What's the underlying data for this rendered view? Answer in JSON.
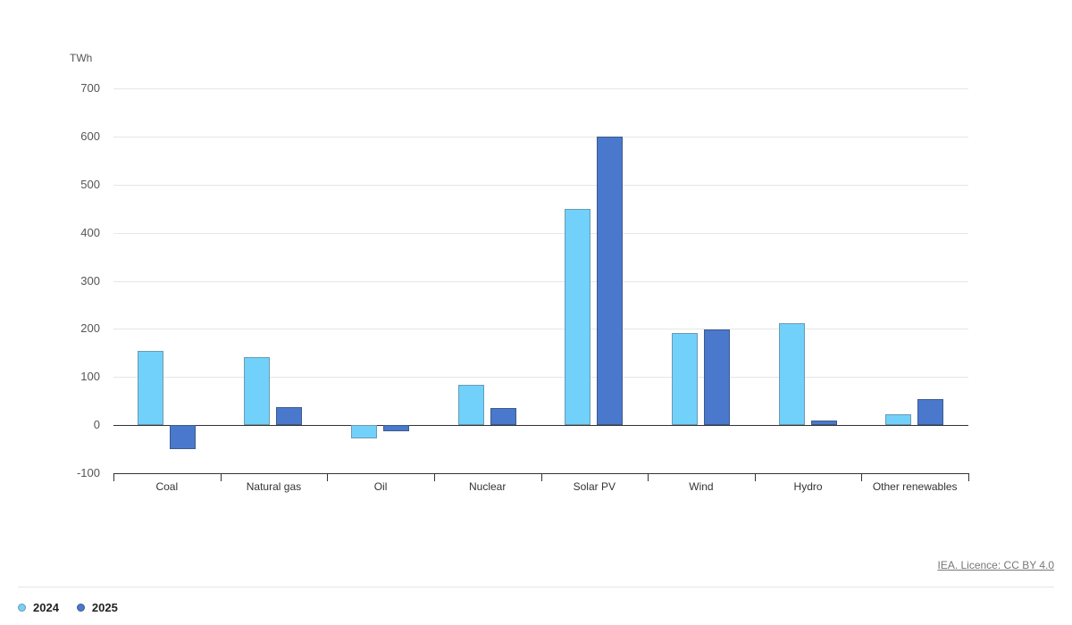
{
  "chart_data": {
    "type": "bar",
    "title": "",
    "xlabel": "",
    "ylabel": "TWh",
    "ylim": [
      -100,
      700
    ],
    "yticks": [
      700,
      600,
      500,
      400,
      300,
      200,
      100,
      0,
      -100
    ],
    "grid": true,
    "legend_position": "bottom-left",
    "categories": [
      "Coal",
      "Natural gas",
      "Oil",
      "Nuclear",
      "Solar PV",
      "Wind",
      "Hydro",
      "Other renewables"
    ],
    "series": [
      {
        "name": "2024",
        "color": "#72d1fa",
        "values": [
          154,
          141,
          -28,
          84,
          450,
          191,
          212,
          22
        ]
      },
      {
        "name": "2025",
        "color": "#4a78cd",
        "values": [
          -50,
          38,
          -13,
          35,
          600,
          198,
          9,
          53
        ]
      }
    ]
  },
  "labels": {
    "unit": "TWh",
    "yticks": [
      "700",
      "600",
      "500",
      "400",
      "300",
      "200",
      "100",
      "0",
      "-100"
    ],
    "categories": [
      "Coal",
      "Natural gas",
      "Oil",
      "Nuclear",
      "Solar PV",
      "Wind",
      "Hydro",
      "Other renewables"
    ],
    "legend": [
      "2024",
      "2025"
    ],
    "credit": "IEA. Licence: CC BY 4.0"
  }
}
